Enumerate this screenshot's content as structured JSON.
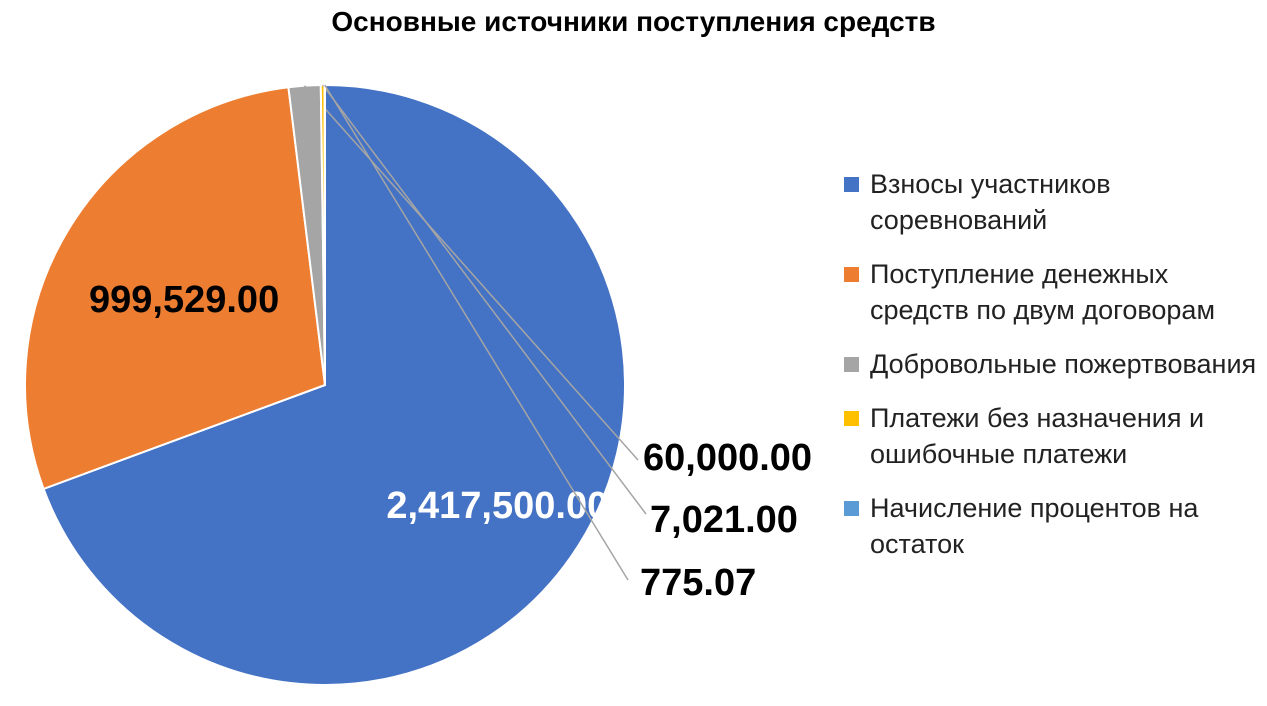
{
  "chart_data": {
    "type": "pie",
    "title": "Основные источники поступления средств",
    "categories": [
      "Взносы участников соревнований",
      "Поступление денежных средств по двум договорам",
      "Добровольные пожертвования",
      "Платежи без назначения и ошибочные платежи",
      "Начисление процентов на остаток"
    ],
    "values": [
      2417500.0,
      999529.0,
      60000.0,
      7021.0,
      775.07
    ],
    "data_labels": [
      "2,417,500.00",
      "999,529.00",
      "60,000.00",
      "7,021.00",
      "775.07"
    ],
    "colors": [
      "#4472C4",
      "#ED7D31",
      "#A5A5A5",
      "#FFC000",
      "#5B9BD5"
    ],
    "label_colors": [
      "#FFFFFF",
      "#000000",
      "#000000",
      "#000000",
      "#000000"
    ],
    "legend_position": "right"
  }
}
